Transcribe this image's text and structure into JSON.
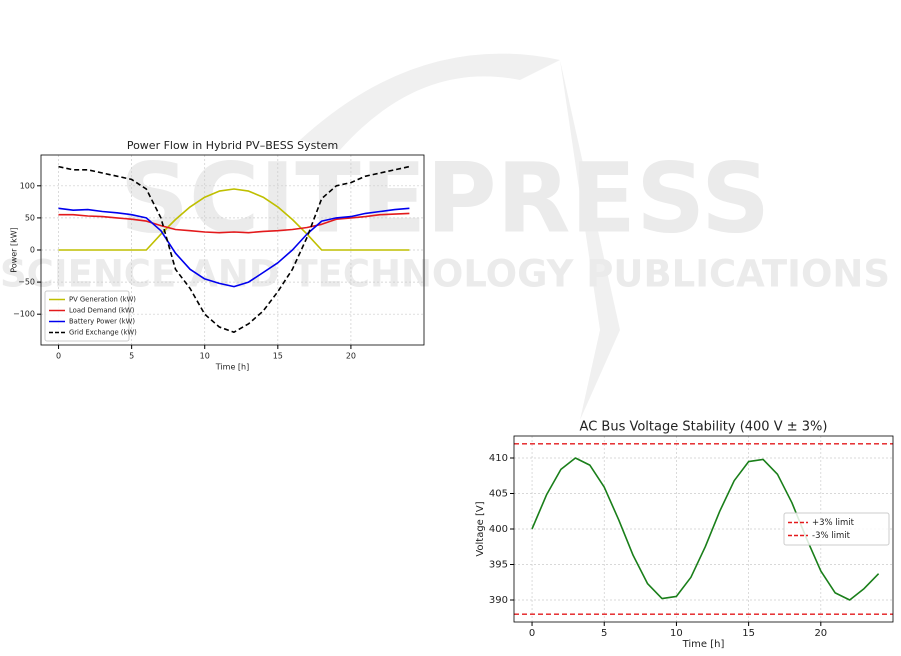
{
  "watermark": {
    "title": "SCITEPRESS",
    "subtitle": "SCIENCE AND TECHNOLOGY PUBLICATIONS"
  },
  "chart_data": [
    {
      "type": "line",
      "title": "Power Flow in Hybrid PV–BESS System",
      "xlabel": "Time [h]",
      "ylabel": "Power [kW]",
      "x": [
        0,
        1,
        2,
        3,
        4,
        5,
        6,
        7,
        8,
        9,
        10,
        11,
        12,
        13,
        14,
        15,
        16,
        17,
        18,
        19,
        20,
        21,
        22,
        23,
        24
      ],
      "series": [
        {
          "name": "PV Generation (kW)",
          "color": "#bfbf00",
          "dash": false,
          "values": [
            0,
            0,
            0,
            0,
            0,
            0,
            0,
            24.6,
            47.5,
            67.2,
            82.3,
            91.8,
            95,
            91.8,
            82.3,
            67.2,
            47.5,
            24.6,
            0,
            0,
            0,
            0,
            0,
            0,
            0
          ]
        },
        {
          "name": "Load Demand (kW)",
          "color": "#e31a1c",
          "dash": false,
          "values": [
            55,
            55,
            53,
            52,
            50,
            48,
            45,
            38,
            32,
            30,
            28,
            27,
            28,
            27,
            29,
            30,
            32,
            35,
            40,
            48,
            50,
            52,
            55,
            56,
            57
          ]
        },
        {
          "name": "Battery Power (kW)",
          "color": "#0000ee",
          "dash": false,
          "values": [
            65,
            62,
            63,
            60,
            58,
            55,
            50,
            30,
            -5,
            -30,
            -45,
            -52,
            -57,
            -50,
            -35,
            -20,
            0,
            25,
            45,
            50,
            52,
            57,
            60,
            63,
            65
          ]
        },
        {
          "name": "Grid Exchange (kW)",
          "color": "#000000",
          "dash": true,
          "values": [
            130,
            125,
            125,
            120,
            115,
            110,
            95,
            50,
            -30,
            -60,
            -100,
            -120,
            -128,
            -115,
            -95,
            -65,
            -30,
            20,
            80,
            100,
            105,
            115,
            120,
            125,
            130
          ]
        }
      ],
      "xlim": [
        -1.2,
        25
      ],
      "ylim": [
        -148,
        148
      ],
      "xticks": [
        0,
        5,
        10,
        15,
        20
      ],
      "yticks": [
        {
          "value": -100,
          "label": "−100"
        },
        {
          "value": -50,
          "label": "−50"
        },
        0,
        50,
        100
      ],
      "grid": true,
      "legend": "lower left"
    },
    {
      "type": "line",
      "title": "AC Bus Voltage Stability (400 V ± 3%)",
      "xlabel": "Time [h]",
      "ylabel": "Voltage [V]",
      "x": [
        0,
        1,
        2,
        3,
        4,
        5,
        6,
        7,
        8,
        9,
        10,
        11,
        12,
        13,
        14,
        15,
        16,
        17,
        18,
        19,
        20,
        21,
        22,
        23,
        24
      ],
      "series": [
        {
          "color": "#1a7f1a",
          "dash": false,
          "values": [
            400,
            404.8,
            408.4,
            410,
            409,
            405.9,
            401.3,
            396.3,
            392.3,
            390.2,
            390.5,
            393.2,
            397.5,
            402.5,
            406.8,
            409.5,
            409.8,
            407.7,
            403.7,
            398.7,
            394.1,
            391,
            390,
            391.6,
            393.7
          ]
        }
      ],
      "hlines": [
        {
          "name": "+3% limit",
          "value": 412,
          "color": "#e31a1c"
        },
        {
          "name": "-3% limit",
          "value": 388,
          "color": "#e31a1c"
        }
      ],
      "xlim": [
        -1.25,
        25
      ],
      "ylim": [
        386.9,
        413.1
      ],
      "xticks": [
        0,
        5,
        10,
        15,
        20
      ],
      "yticks": [
        390,
        395,
        400,
        405,
        410
      ],
      "grid": true,
      "legend": "center right"
    }
  ]
}
